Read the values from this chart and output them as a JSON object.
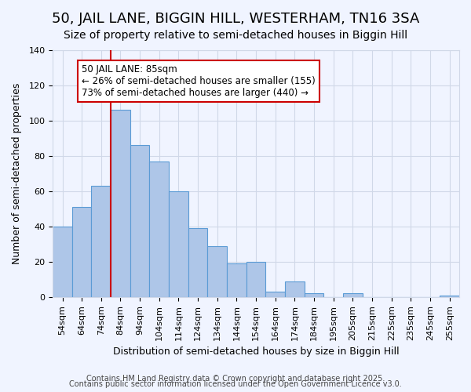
{
  "title": "50, JAIL LANE, BIGGIN HILL, WESTERHAM, TN16 3SA",
  "subtitle": "Size of property relative to semi-detached houses in Biggin Hill",
  "xlabel": "Distribution of semi-detached houses by size in Biggin Hill",
  "ylabel": "Number of semi-detached properties",
  "categories": [
    "54sqm",
    "64sqm",
    "74sqm",
    "84sqm",
    "94sqm",
    "104sqm",
    "114sqm",
    "124sqm",
    "134sqm",
    "144sqm",
    "154sqm",
    "164sqm",
    "174sqm",
    "184sqm",
    "195sqm",
    "205sqm",
    "215sqm",
    "225sqm",
    "235sqm",
    "245sqm",
    "255sqm"
  ],
  "values": [
    40,
    51,
    63,
    106,
    86,
    77,
    60,
    39,
    29,
    19,
    20,
    3,
    9,
    2,
    0,
    2,
    0,
    0,
    0,
    0,
    1
  ],
  "bar_color": "#aec6e8",
  "bar_edge_color": "#5b9bd5",
  "background_color": "#f0f4ff",
  "grid_color": "#d0d8e8",
  "property_line_x": 85,
  "property_label": "50 JAIL LANE: 85sqm",
  "annotation_line1": "← 26% of semi-detached houses are smaller (155)",
  "annotation_line2": "73% of semi-detached houses are larger (440) →",
  "annotation_box_color": "#ffffff",
  "annotation_box_edge": "#cc0000",
  "vline_color": "#cc0000",
  "ylim": [
    0,
    140
  ],
  "yticks": [
    0,
    20,
    40,
    60,
    80,
    100,
    120,
    140
  ],
  "footer1": "Contains HM Land Registry data © Crown copyright and database right 2025.",
  "footer2": "Contains public sector information licensed under the Open Government Licence v3.0.",
  "title_fontsize": 13,
  "subtitle_fontsize": 10,
  "axis_label_fontsize": 9,
  "tick_fontsize": 8,
  "annotation_fontsize": 8.5,
  "footer_fontsize": 7
}
